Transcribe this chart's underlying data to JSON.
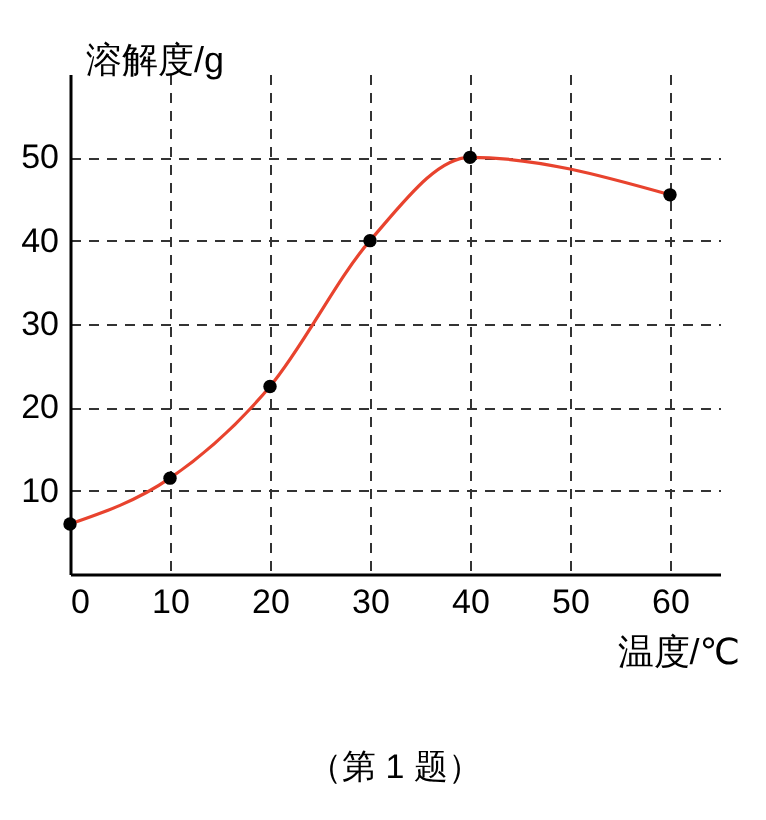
{
  "chart_data": {
    "type": "line",
    "xlabel": "温度/℃",
    "ylabel": "溶解度/g",
    "annotations": [
      "（第 1 题）"
    ],
    "x": [
      0,
      10,
      20,
      30,
      40,
      60
    ],
    "series": [
      {
        "color": "#e8432e",
        "values": [
          6,
          11.5,
          22.5,
          40,
          50,
          45.5
        ]
      }
    ],
    "xlim": [
      0,
      65
    ],
    "ylim": [
      0,
      60
    ],
    "xticks": [
      0,
      10,
      20,
      30,
      40,
      50,
      60
    ],
    "yticks": [
      10,
      20,
      30,
      40,
      50
    ],
    "grid": true,
    "marker": "circle",
    "line_style": "solid"
  }
}
